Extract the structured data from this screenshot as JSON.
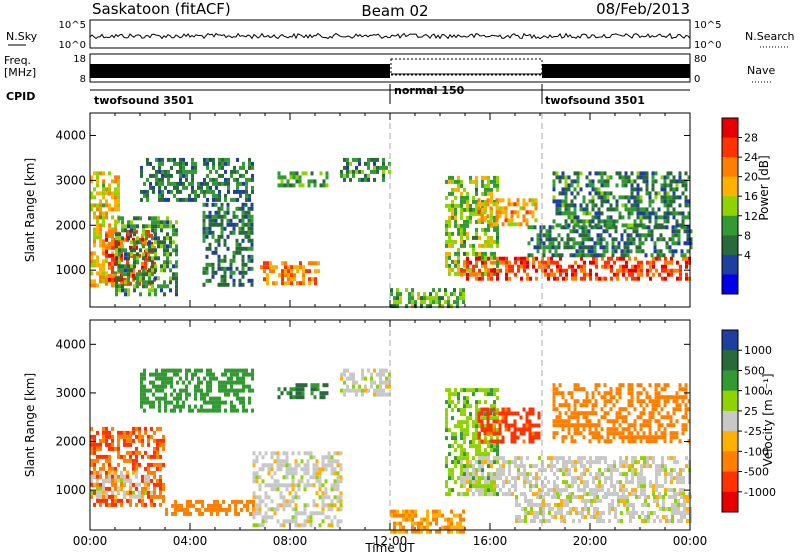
{
  "header": {
    "station": "Saskatoon (fitACF)",
    "beam": "Beam 02",
    "date": "08/Feb/2013"
  },
  "noise_panel": {
    "left_label": "N.Sky",
    "left_ticks": [
      "10^5",
      "10^0"
    ],
    "right_label": "N.Search",
    "right_ticks": [
      "10^5",
      "10^0"
    ]
  },
  "freq_panel": {
    "left_label_top": "Freq.",
    "left_label_unit": "[MHz]",
    "left_ticks": [
      "18",
      "8"
    ],
    "right_label": "Nave",
    "right_ticks": [
      "80",
      "0"
    ]
  },
  "cpid_panel": {
    "label": "CPID",
    "modes": [
      {
        "name": "twofsound 3501",
        "start_hour": 0,
        "end_hour": 12
      },
      {
        "name": "normal 150",
        "start_hour": 12,
        "end_hour": 18
      },
      {
        "name": "twofsound 3501",
        "start_hour": 18,
        "end_hour": 24
      }
    ]
  },
  "chart_data": [
    {
      "type": "heatmap",
      "panel": "power",
      "ylabel": "Slant Range [km]",
      "xlabel": "",
      "xlim": [
        0,
        24
      ],
      "ylim": [
        180,
        4500
      ],
      "yticks": [
        "1000",
        "2000",
        "3000",
        "4000"
      ],
      "colorbar": {
        "label": "Power [dB]",
        "ticks": [
          "28",
          "24",
          "20",
          "16",
          "12",
          "8",
          "4"
        ],
        "colors": [
          "#e60000",
          "#ff3300",
          "#ff8000",
          "#ffb000",
          "#8fd400",
          "#339933",
          "#2a6a3a",
          "#1f3fa0",
          "#0000e6"
        ]
      },
      "regions": [
        {
          "x0": 0.0,
          "x1": 1.2,
          "y0": 700,
          "y1": 3200,
          "level": 18
        },
        {
          "x0": 0.6,
          "x1": 2.6,
          "y0": 700,
          "y1": 1900,
          "level": 26
        },
        {
          "x0": 1.0,
          "x1": 3.5,
          "y0": 500,
          "y1": 2200,
          "level": 10
        },
        {
          "x0": 2.0,
          "x1": 6.5,
          "y0": 2600,
          "y1": 3500,
          "level": 8
        },
        {
          "x0": 4.5,
          "x1": 6.5,
          "y0": 700,
          "y1": 2500,
          "level": 7
        },
        {
          "x0": 6.8,
          "x1": 9.2,
          "y0": 700,
          "y1": 1200,
          "level": 22
        },
        {
          "x0": 7.5,
          "x1": 9.5,
          "y0": 2900,
          "y1": 3200,
          "level": 12
        },
        {
          "x0": 10.0,
          "x1": 12.0,
          "y0": 3000,
          "y1": 3500,
          "level": 9
        },
        {
          "x0": 12.0,
          "x1": 15.0,
          "y0": 180,
          "y1": 600,
          "level": 12
        },
        {
          "x0": 14.2,
          "x1": 16.3,
          "y0": 900,
          "y1": 3100,
          "level": 14
        },
        {
          "x0": 15.5,
          "x1": 17.8,
          "y0": 2000,
          "y1": 2600,
          "level": 20
        },
        {
          "x0": 14.8,
          "x1": 24.0,
          "y0": 800,
          "y1": 1300,
          "level": 26
        },
        {
          "x0": 17.5,
          "x1": 24.0,
          "y0": 1300,
          "y1": 2000,
          "level": 8
        },
        {
          "x0": 18.5,
          "x1": 24.0,
          "y0": 2000,
          "y1": 3200,
          "level": 9
        }
      ]
    },
    {
      "type": "heatmap",
      "panel": "velocity",
      "ylabel": "Slant Range [km]",
      "xlabel": "Time UT",
      "xlim": [
        0,
        24
      ],
      "ylim": [
        180,
        4500
      ],
      "yticks": [
        "1000",
        "2000",
        "3000",
        "4000"
      ],
      "xticks": [
        "00:00",
        "04:00",
        "08:00",
        "12:00",
        "16:00",
        "20:00",
        "00:00"
      ],
      "colorbar": {
        "label": "Velocity [m s⁻¹]",
        "ticks": [
          "1000",
          "500",
          "100",
          "25",
          "-25",
          "-100",
          "-500",
          "-1000"
        ],
        "colors": [
          "#1f3fa0",
          "#2a6a3a",
          "#339933",
          "#8fd400",
          "#c8c8c8",
          "#ffb000",
          "#ff8000",
          "#ff3300",
          "#e60000"
        ]
      },
      "regions": [
        {
          "x0": 0.0,
          "x1": 3.0,
          "y0": 700,
          "y1": 2300,
          "level": -300
        },
        {
          "x0": 0.0,
          "x1": 2.5,
          "y0": 900,
          "y1": 1400,
          "level": 0
        },
        {
          "x0": 2.0,
          "x1": 6.5,
          "y0": 2600,
          "y1": 3500,
          "level": 200
        },
        {
          "x0": 3.0,
          "x1": 6.5,
          "y0": 500,
          "y1": 800,
          "level": -200
        },
        {
          "x0": 6.5,
          "x1": 10.0,
          "y0": 300,
          "y1": 1800,
          "level": 0
        },
        {
          "x0": 7.5,
          "x1": 9.5,
          "y0": 2900,
          "y1": 3200,
          "level": 300
        },
        {
          "x0": 10.0,
          "x1": 12.0,
          "y0": 3000,
          "y1": 3500,
          "level": 0
        },
        {
          "x0": 12.0,
          "x1": 15.0,
          "y0": 180,
          "y1": 600,
          "level": -60
        },
        {
          "x0": 14.2,
          "x1": 16.3,
          "y0": 900,
          "y1": 3100,
          "level": 50
        },
        {
          "x0": 15.5,
          "x1": 18.0,
          "y0": 2000,
          "y1": 2700,
          "level": -400
        },
        {
          "x0": 14.8,
          "x1": 24.0,
          "y0": 900,
          "y1": 1700,
          "level": 0
        },
        {
          "x0": 18.5,
          "x1": 24.0,
          "y0": 2000,
          "y1": 3200,
          "level": -200
        },
        {
          "x0": 17.0,
          "x1": 24.0,
          "y0": 400,
          "y1": 900,
          "level": 0
        }
      ]
    }
  ]
}
